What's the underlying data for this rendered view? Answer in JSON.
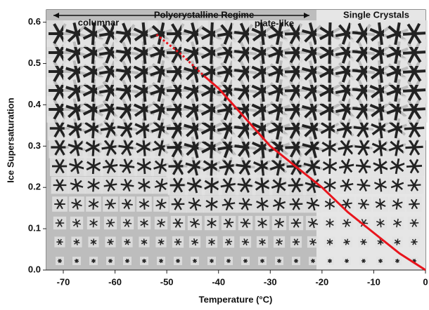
{
  "chart_data": {
    "type": "line",
    "xlabel": "Temperature (°C)",
    "ylabel": "Ice Supersaturation",
    "annotations": [
      "Polycrystalline Regime",
      "columnar",
      "plate-like",
      "Single Crystals"
    ],
    "xlim": [
      -70,
      0
    ],
    "ylim": [
      0,
      0.63
    ],
    "xticks": [
      -70,
      -60,
      -50,
      -40,
      -30,
      -20,
      -10,
      0
    ],
    "yticks": [
      {
        "value": 0,
        "label": "0.0"
      },
      0.1,
      0.2,
      0.3,
      0.4,
      0.5,
      0.6
    ],
    "series": [
      {
        "color": "#e8141c",
        "style": "dotted",
        "x": [
          -52,
          -47,
          -42.8
        ],
        "values": [
          0.57,
          0.52,
          0.47
        ]
      },
      {
        "color": "#e8141c",
        "style": "solid",
        "x": [
          -42.8,
          -40,
          -35,
          -30,
          -25,
          -20,
          -15,
          -10,
          -5,
          0
        ],
        "values": [
          0.47,
          0.44,
          0.37,
          0.3,
          0.25,
          0.2,
          0.14,
          0.09,
          0.04,
          0
        ]
      }
    ]
  }
}
